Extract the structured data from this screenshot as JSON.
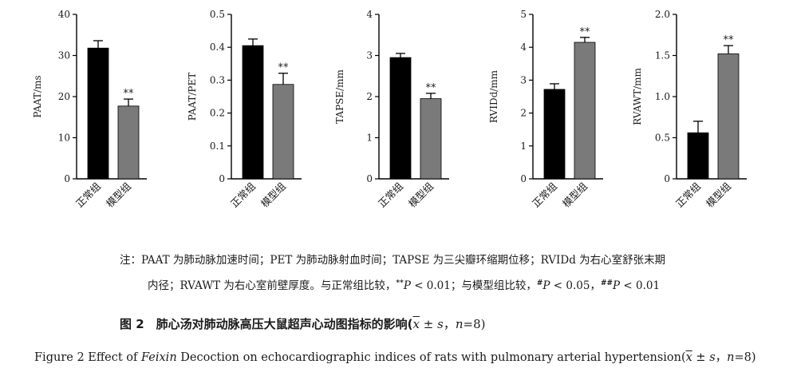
{
  "chart_data": [
    {
      "type": "bar",
      "ylabel": "PAAT/ms",
      "categories": [
        "正常组",
        "模型组"
      ],
      "values": [
        31.8,
        17.7
      ],
      "errors": [
        1.8,
        1.7
      ],
      "annotations": [
        "",
        "**"
      ],
      "ylim": [
        0,
        40
      ],
      "yticks": [
        0,
        10,
        20,
        30,
        40
      ],
      "ytick_labels": [
        "0",
        "10",
        "20",
        "30",
        "40"
      ],
      "colors": [
        "#000000",
        "#7a7a7a"
      ]
    },
    {
      "type": "bar",
      "ylabel": "PAAT/PET",
      "categories": [
        "正常组",
        "模型组"
      ],
      "values": [
        0.405,
        0.287
      ],
      "errors": [
        0.02,
        0.034
      ],
      "annotations": [
        "",
        "**"
      ],
      "ylim": [
        0,
        0.5
      ],
      "yticks": [
        0,
        0.1,
        0.2,
        0.3,
        0.4,
        0.5
      ],
      "ytick_labels": [
        "0",
        "0.1",
        "0.2",
        "0.3",
        "0.4",
        "0.5"
      ],
      "colors": [
        "#000000",
        "#7a7a7a"
      ]
    },
    {
      "type": "bar",
      "ylabel": "TAPSE/mm",
      "categories": [
        "正常组",
        "模型组"
      ],
      "values": [
        2.95,
        1.95
      ],
      "errors": [
        0.1,
        0.13
      ],
      "annotations": [
        "",
        "**"
      ],
      "ylim": [
        0,
        4
      ],
      "yticks": [
        0,
        1,
        2,
        3,
        4
      ],
      "ytick_labels": [
        "0",
        "1",
        "2",
        "3",
        "4"
      ],
      "colors": [
        "#000000",
        "#7a7a7a"
      ]
    },
    {
      "type": "bar",
      "ylabel": "RVIDd/mm",
      "categories": [
        "正常组",
        "模型组"
      ],
      "values": [
        2.72,
        4.15
      ],
      "errors": [
        0.17,
        0.15
      ],
      "annotations": [
        "",
        "**"
      ],
      "ylim": [
        0,
        5
      ],
      "yticks": [
        0,
        1,
        2,
        3,
        4,
        5
      ],
      "ytick_labels": [
        "0",
        "1",
        "2",
        "3",
        "4",
        "5"
      ],
      "colors": [
        "#000000",
        "#7a7a7a"
      ]
    },
    {
      "type": "bar",
      "ylabel": "RVAWT/mm",
      "categories": [
        "正常组",
        "模型组"
      ],
      "values": [
        0.56,
        1.52
      ],
      "errors": [
        0.14,
        0.1
      ],
      "annotations": [
        "",
        "**"
      ],
      "ylim": [
        0,
        2.0
      ],
      "yticks": [
        0,
        0.5,
        1.0,
        1.5,
        2.0
      ],
      "ytick_labels": [
        "0",
        "0.5",
        "1.0",
        "1.5",
        "2.0"
      ],
      "colors": [
        "#000000",
        "#7a7a7a"
      ]
    }
  ],
  "note": {
    "line1": "注：PAAT 为肺动脉加速时间；PET 为肺动脉射血时间；TAPSE 为三尖瓣环缩期位移；RVIDd 为右心室舒张末期",
    "line2_a": "内径；RVAWT 为右心室前壁厚度。与正常组比较，",
    "sig1": "**",
    "p1": "P",
    "p1_val": " < 0.01；与模型组比较，",
    "sig2": "#",
    "p2": "P",
    "p2_val": " < 0.05，",
    "sig3": "##",
    "p3": "P",
    "p3_val": " < 0.01"
  },
  "caption_zh": {
    "text": "图 2　肺心汤对肺动脉高压大鼠超声心动图指标的影响(",
    "xbar": "x",
    "pm": " ± ",
    "s": "s",
    "sep": "，",
    "n": "n",
    "n_val": "=8)"
  },
  "caption_en": {
    "pre": "Figure 2   Effect of ",
    "name": "Feixin",
    "post": " Decoction on echocardiographic indices of rats with pulmonary arterial hypertension(",
    "xbar": "x",
    "pm": " ± ",
    "s": "s",
    "sep": "，",
    "n": "n",
    "n_val": "=8)"
  }
}
